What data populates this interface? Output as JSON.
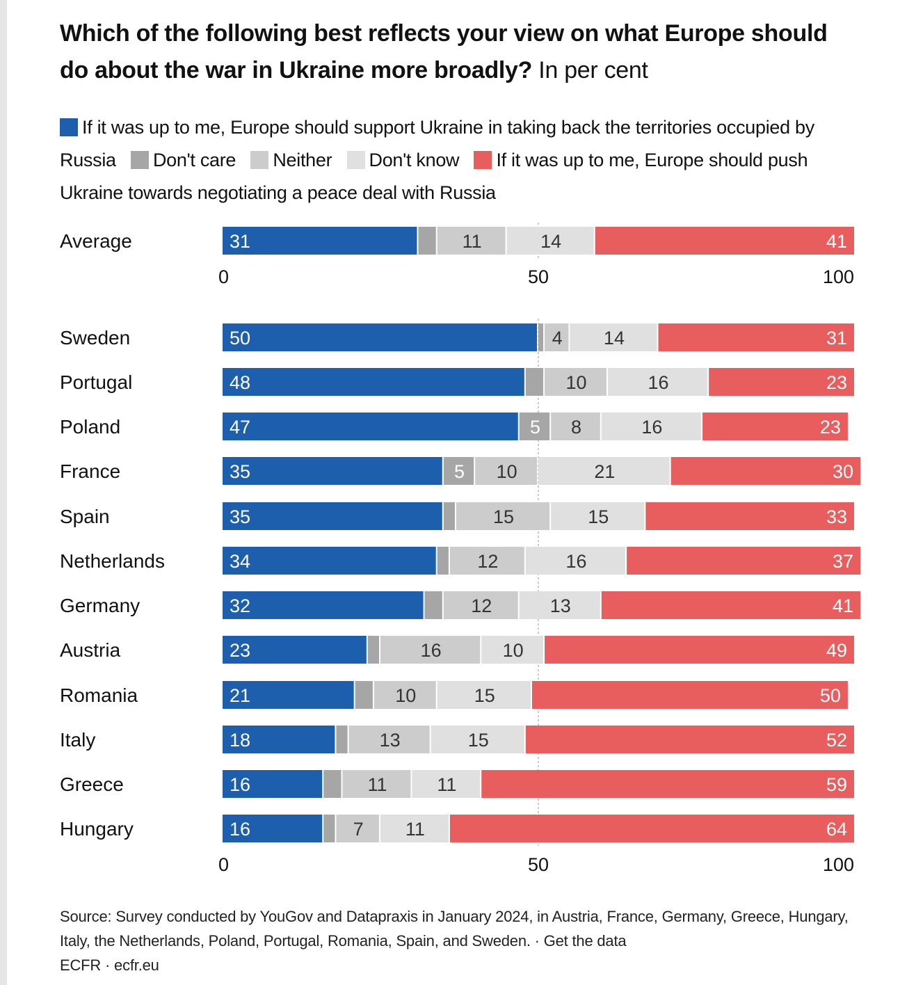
{
  "title": {
    "bold": "Which of the following best reflects your view on what Europe should do about the war in Ukraine more broadly?",
    "unit": "In per cent"
  },
  "legend": [
    {
      "label": "If it was up to me, Europe should support Ukraine in taking back the territories occupied by Russia",
      "color": "#1d5fad"
    },
    {
      "label": "Don't care",
      "color": "#a6a6a6"
    },
    {
      "label": "Neither",
      "color": "#cccccc"
    },
    {
      "label": "Don't know",
      "color": "#e0e0e0"
    },
    {
      "label": "If it was up to me, Europe should push Ukraine towards negotiating a peace deal with Russia",
      "color": "#e85d5d"
    }
  ],
  "source": "Source: Survey conducted by YouGov and Datapraxis in January 2024, in Austria, France, Germany, Greece, Hungary, Italy, the Netherlands, Poland, Portugal, Romania, Spain, and Sweden. · Get the data",
  "credit": "ECFR · ecfr.eu",
  "chart_data": [
    {
      "type": "bar",
      "orientation": "horizontal",
      "stacked": true,
      "xlim": [
        0,
        100
      ],
      "xticks": [
        "0",
        "50",
        "100"
      ],
      "categories": [
        "Average"
      ],
      "series": [
        {
          "name": "If it was up to me, Europe should support Ukraine in taking back the territories occupied by Russia",
          "values": [
            31
          ]
        },
        {
          "name": "Don't care",
          "values": [
            3
          ]
        },
        {
          "name": "Neither",
          "values": [
            11
          ]
        },
        {
          "name": "Don't know",
          "values": [
            14
          ]
        },
        {
          "name": "If it was up to me, Europe should push Ukraine towards negotiating a peace deal with Russia",
          "values": [
            41
          ]
        }
      ],
      "labels": [
        [
          "31",
          "",
          "11",
          "14",
          "41"
        ]
      ]
    },
    {
      "type": "bar",
      "orientation": "horizontal",
      "stacked": true,
      "xlim": [
        0,
        100
      ],
      "xticks": [
        "0",
        "50",
        "100"
      ],
      "categories": [
        "Sweden",
        "Portugal",
        "Poland",
        "France",
        "Spain",
        "Netherlands",
        "Germany",
        "Austria",
        "Romania",
        "Italy",
        "Greece",
        "Hungary"
      ],
      "series": [
        {
          "name": "If it was up to me, Europe should support Ukraine in taking back the territories occupied by Russia",
          "values": [
            50,
            48,
            47,
            35,
            35,
            34,
            32,
            23,
            21,
            18,
            16,
            16
          ]
        },
        {
          "name": "Don't care",
          "values": [
            1,
            3,
            5,
            5,
            2,
            2,
            3,
            2,
            3,
            2,
            3,
            2
          ]
        },
        {
          "name": "Neither",
          "values": [
            4,
            10,
            8,
            10,
            15,
            12,
            12,
            16,
            10,
            13,
            11,
            7
          ]
        },
        {
          "name": "Don't know",
          "values": [
            14,
            16,
            16,
            21,
            15,
            16,
            13,
            10,
            15,
            15,
            11,
            11
          ]
        },
        {
          "name": "If it was up to me, Europe should push Ukraine towards negotiating a peace deal with Russia",
          "values": [
            31,
            23,
            23,
            30,
            33,
            37,
            41,
            49,
            50,
            52,
            59,
            64
          ]
        }
      ],
      "labels": [
        [
          "50",
          "",
          "4",
          "14",
          "31"
        ],
        [
          "48",
          "",
          "10",
          "16",
          "23"
        ],
        [
          "47",
          "5",
          "8",
          "16",
          "23"
        ],
        [
          "35",
          "5",
          "10",
          "21",
          "30"
        ],
        [
          "35",
          "",
          "15",
          "15",
          "33"
        ],
        [
          "34",
          "",
          "12",
          "16",
          "37"
        ],
        [
          "32",
          "",
          "12",
          "13",
          "41"
        ],
        [
          "23",
          "",
          "16",
          "10",
          "49"
        ],
        [
          "21",
          "",
          "10",
          "15",
          "50"
        ],
        [
          "18",
          "",
          "13",
          "15",
          "52"
        ],
        [
          "16",
          "",
          "11",
          "11",
          "59"
        ],
        [
          "16",
          "",
          "7",
          "11",
          "64"
        ]
      ]
    }
  ]
}
